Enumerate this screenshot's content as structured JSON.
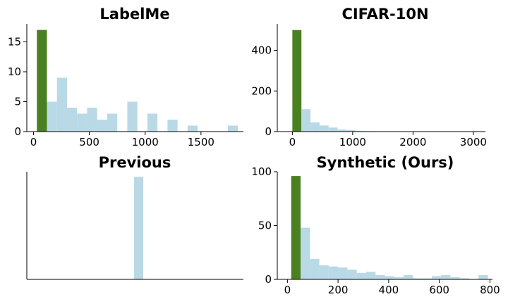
{
  "colors": {
    "highlight": "#4a8020",
    "bar": "#b9d9e6",
    "axis": "#000000",
    "background": "#ffffff"
  },
  "chart_data": [
    {
      "type": "bar",
      "title": "LabelMe",
      "xlabel": "",
      "ylabel": "",
      "xlim": [
        -60,
        1880
      ],
      "ylim": [
        0,
        18
      ],
      "xticks": [
        0,
        500,
        1000,
        1500
      ],
      "yticks": [
        0,
        5,
        10,
        15
      ],
      "bin_width": 90,
      "bins": [
        {
          "x": 30,
          "value": 17,
          "highlight": true
        },
        {
          "x": 120,
          "value": 5
        },
        {
          "x": 210,
          "value": 9
        },
        {
          "x": 300,
          "value": 4
        },
        {
          "x": 390,
          "value": 3
        },
        {
          "x": 480,
          "value": 4
        },
        {
          "x": 570,
          "value": 2
        },
        {
          "x": 660,
          "value": 3
        },
        {
          "x": 840,
          "value": 5
        },
        {
          "x": 1020,
          "value": 3
        },
        {
          "x": 1200,
          "value": 2
        },
        {
          "x": 1380,
          "value": 1
        },
        {
          "x": 1740,
          "value": 1
        }
      ]
    },
    {
      "type": "bar",
      "title": "CIFAR-10N",
      "xlabel": "",
      "ylabel": "",
      "xlim": [
        -250,
        3200
      ],
      "ylim": [
        0,
        530
      ],
      "xticks": [
        0,
        1000,
        2000,
        3000
      ],
      "yticks": [
        0,
        200,
        400
      ],
      "bin_width": 150,
      "bins": [
        {
          "x": 0,
          "value": 500,
          "highlight": true
        },
        {
          "x": 150,
          "value": 110
        },
        {
          "x": 300,
          "value": 45
        },
        {
          "x": 450,
          "value": 30
        },
        {
          "x": 600,
          "value": 20
        },
        {
          "x": 750,
          "value": 10
        },
        {
          "x": 900,
          "value": 7
        },
        {
          "x": 1050,
          "value": 3
        },
        {
          "x": 1200,
          "value": 2
        },
        {
          "x": 1350,
          "value": 1
        },
        {
          "x": 1500,
          "value": 1
        },
        {
          "x": 1650,
          "value": 1
        },
        {
          "x": 1800,
          "value": 1
        },
        {
          "x": 1950,
          "value": 1
        },
        {
          "x": 2100,
          "value": 1
        },
        {
          "x": 2250,
          "value": 1
        },
        {
          "x": 2400,
          "value": 1
        },
        {
          "x": 2550,
          "value": 1
        },
        {
          "x": 2700,
          "value": 1
        },
        {
          "x": 2850,
          "value": 1
        },
        {
          "x": 3000,
          "value": 1
        }
      ]
    },
    {
      "type": "bar",
      "title": "Previous",
      "xlabel": "",
      "ylabel": "",
      "xlim": [
        0,
        20
      ],
      "ylim": [
        0,
        1.05
      ],
      "xticks": [],
      "yticks": [],
      "bin_width": 0.85,
      "bins": [
        {
          "x": 9.9,
          "value": 1
        }
      ]
    },
    {
      "type": "bar",
      "title": "Synthetic (Ours)",
      "xlabel": "",
      "ylabel": "",
      "xlim": [
        -40,
        810
      ],
      "ylim": [
        0,
        100
      ],
      "xticks": [
        0,
        200,
        400,
        600,
        800
      ],
      "yticks": [
        0,
        50,
        100
      ],
      "bin_width": 37,
      "bins": [
        {
          "x": 15,
          "value": 96,
          "highlight": true
        },
        {
          "x": 52,
          "value": 48
        },
        {
          "x": 89,
          "value": 19
        },
        {
          "x": 126,
          "value": 13
        },
        {
          "x": 163,
          "value": 12
        },
        {
          "x": 200,
          "value": 11
        },
        {
          "x": 237,
          "value": 9
        },
        {
          "x": 274,
          "value": 6
        },
        {
          "x": 311,
          "value": 7
        },
        {
          "x": 348,
          "value": 4
        },
        {
          "x": 385,
          "value": 3
        },
        {
          "x": 422,
          "value": 2
        },
        {
          "x": 459,
          "value": 4
        },
        {
          "x": 496,
          "value": 1
        },
        {
          "x": 533,
          "value": 1
        },
        {
          "x": 570,
          "value": 3
        },
        {
          "x": 607,
          "value": 4
        },
        {
          "x": 644,
          "value": 2
        },
        {
          "x": 681,
          "value": 1
        },
        {
          "x": 755,
          "value": 4
        }
      ]
    }
  ]
}
